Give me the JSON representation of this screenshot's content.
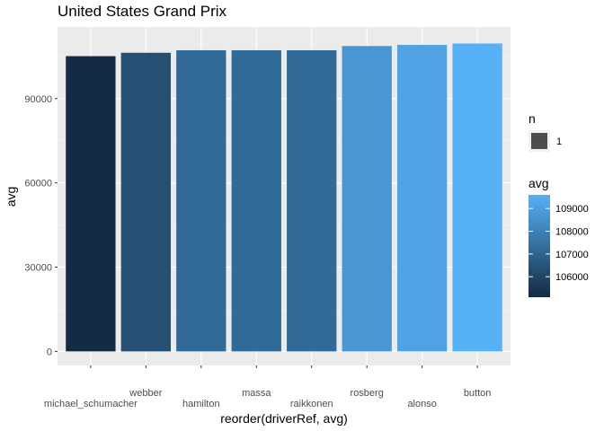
{
  "chart_data": {
    "type": "bar",
    "title": "United States Grand Prix",
    "xlabel": "reorder(driverRef, avg)",
    "ylabel": "avg",
    "categories": [
      "michael_schumacher",
      "webber",
      "hamilton",
      "massa",
      "raikkonen",
      "rosberg",
      "alonso",
      "button"
    ],
    "values": [
      105100,
      106300,
      107200,
      107200,
      107200,
      108700,
      109100,
      109600
    ],
    "ylim": [
      -5000,
      115500
    ],
    "yticks": [
      0,
      30000,
      60000,
      90000
    ],
    "ytick_labels": [
      "0",
      "30000",
      "60000",
      "90000"
    ],
    "grid": true,
    "fill_scale": {
      "title": "avg",
      "low": 105100,
      "high": 109600,
      "low_color": "#132B43",
      "high_color": "#56B1F7",
      "breaks": [
        106000,
        107000,
        108000,
        109000
      ],
      "break_labels": [
        "106000",
        "107000",
        "108000",
        "109000"
      ]
    },
    "size_legend": {
      "title": "n",
      "items": [
        {
          "label": "1",
          "color": "#4d4d4d"
        }
      ]
    },
    "legend_position": "right"
  },
  "colors": {
    "panel_background": "#ebebeb",
    "grid_major": "#ffffff",
    "grid_minor": "#f5f5f5",
    "tick_text": "#4d4d4d"
  }
}
